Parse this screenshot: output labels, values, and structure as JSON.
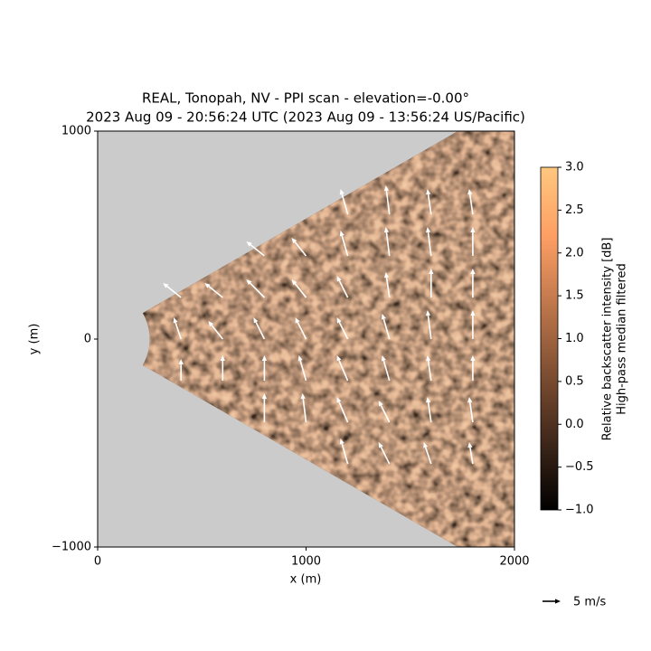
{
  "chart_data": {
    "type": "quiver",
    "title": [
      "REAL, Tonopah, NV - PPI scan - elevation=-0.00°",
      "2023 Aug 09 - 20:56:24 UTC (2023 Aug 09 - 13:56:24 US/Pacific)"
    ],
    "xlabel": "x (m)",
    "ylabel": "y (m)",
    "xlim": [
      0,
      2000
    ],
    "ylim": [
      -1000,
      1000
    ],
    "xticks": [
      0,
      1000,
      2000
    ],
    "yticks": [
      {
        "value": -1000,
        "label": "−1000"
      },
      0,
      1000
    ],
    "vectors": {
      "color": "#ffffff",
      "x": [
        400,
        400,
        400,
        600,
        600,
        600,
        800,
        800,
        800,
        800,
        800,
        1000,
        1000,
        1000,
        1000,
        1000,
        1200,
        1200,
        1200,
        1200,
        1200,
        1200,
        1200,
        1400,
        1400,
        1400,
        1400,
        1400,
        1400,
        1400,
        1600,
        1600,
        1600,
        1600,
        1600,
        1600,
        1600,
        1800,
        1800,
        1800,
        1800,
        1800,
        1800,
        1800
      ],
      "y": [
        -200,
        0,
        200,
        -200,
        0,
        200,
        -400,
        -200,
        0,
        200,
        400,
        -400,
        -200,
        0,
        200,
        400,
        -600,
        -400,
        -200,
        0,
        200,
        400,
        600,
        -600,
        -400,
        -200,
        0,
        200,
        400,
        600,
        -600,
        -400,
        -200,
        0,
        200,
        400,
        600,
        -600,
        -400,
        -200,
        0,
        200,
        400,
        600
      ],
      "u": [
        0,
        -2,
        -5,
        0,
        -4,
        -5,
        0,
        0,
        -3,
        -5,
        -5,
        -1,
        -2,
        -3,
        -4,
        -4,
        -2,
        -3,
        -3,
        -3,
        -3,
        -2,
        -2,
        -3,
        -3,
        -2,
        -2,
        -1,
        -1,
        -1,
        -2,
        -1,
        -1,
        -1,
        0,
        -1,
        -1,
        -1,
        -1,
        0,
        0,
        0,
        0,
        -1
      ],
      "v": [
        6,
        6,
        4,
        7,
        5,
        4,
        8,
        7,
        6,
        5,
        4,
        8,
        7,
        6,
        5,
        5,
        7,
        7,
        7,
        6,
        6,
        7,
        7,
        6,
        6,
        7,
        7,
        7,
        8,
        8,
        6,
        7,
        7,
        8,
        8,
        8,
        7,
        6,
        7,
        7,
        8,
        8,
        8,
        7
      ]
    },
    "quiver_key": {
      "value": 5,
      "label": "5 m/s"
    },
    "colorbar": {
      "cmap": "copper",
      "lim": [
        -1,
        3
      ],
      "label": [
        "Relative backscatter intensity [dB]",
        "High-pass median filtered"
      ],
      "ticks": [
        {
          "value": -1,
          "label": "−1.0"
        },
        {
          "value": -0.5,
          "label": "−0.5"
        },
        {
          "value": 0,
          "label": "0.0"
        },
        {
          "value": 0.5,
          "label": "0.5"
        },
        {
          "value": 1,
          "label": "1.0"
        },
        {
          "value": 1.5,
          "label": "1.5"
        },
        {
          "value": 2,
          "label": "2.0"
        },
        {
          "value": 2.5,
          "label": "2.5"
        },
        {
          "value": 3,
          "label": "3.0"
        }
      ]
    }
  }
}
